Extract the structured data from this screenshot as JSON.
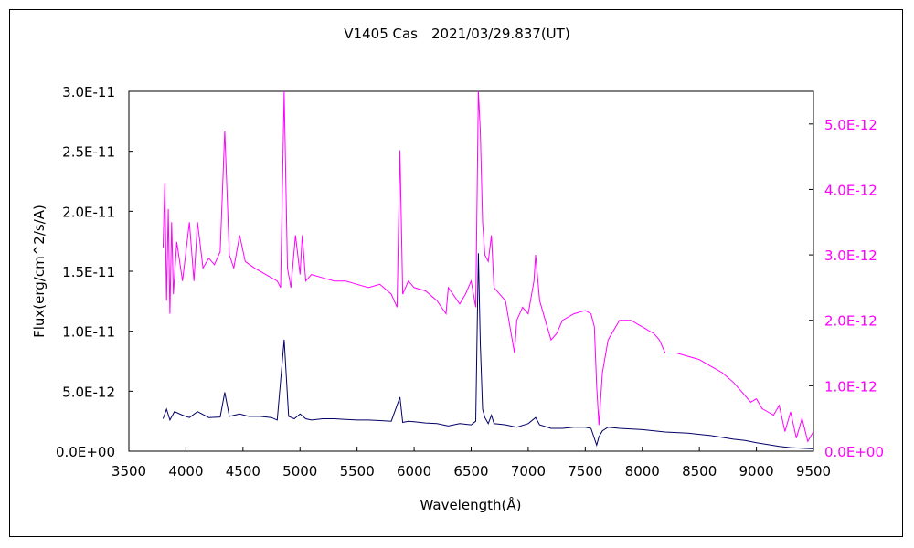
{
  "chart_data": {
    "type": "line",
    "title": "V1405 Cas　2021/03/29.837(UT)",
    "xlabel": "Wavelength(Å)",
    "ylabel": "Flux(erg/cm^2/s/A)",
    "xlim": [
      3500,
      9500
    ],
    "ylim_left": [
      0,
      3e-11
    ],
    "ylim_right": [
      0,
      5.5e-12
    ],
    "x_ticks": [
      "3500",
      "4000",
      "4500",
      "5000",
      "5500",
      "6000",
      "6500",
      "7000",
      "7500",
      "8000",
      "8500",
      "9000",
      "9500"
    ],
    "y_ticks_left": [
      "0.0E+00",
      "5.0E-12",
      "1.0E-11",
      "1.5E-11",
      "2.0E-11",
      "2.5E-11",
      "3.0E-11"
    ],
    "y_ticks_right": [
      "0.0E+00",
      "1.0E-12",
      "2.0E-12",
      "3.0E-12",
      "4.0E-12",
      "5.0E-12"
    ],
    "grid": false,
    "series": [
      {
        "axis": "left",
        "color": "#000066",
        "x": [
          3800,
          3830,
          3860,
          3900,
          3970,
          4030,
          4102,
          4200,
          4300,
          4340,
          4380,
          4471,
          4550,
          4650,
          4750,
          4800,
          4861,
          4900,
          4950,
          5000,
          5050,
          5100,
          5200,
          5300,
          5400,
          5500,
          5600,
          5700,
          5800,
          5876,
          5900,
          5950,
          6000,
          6100,
          6200,
          6300,
          6400,
          6500,
          6540,
          6563,
          6580,
          6600,
          6620,
          6650,
          6678,
          6700,
          6800,
          6900,
          7000,
          7065,
          7100,
          7200,
          7300,
          7400,
          7500,
          7550,
          7600,
          7620,
          7650,
          7700,
          7800,
          8000,
          8200,
          8400,
          8500,
          8600,
          8700,
          8800,
          8900,
          9000,
          9100,
          9200,
          9300,
          9400,
          9500
        ],
        "y": [
          2.7e-12,
          3.5e-12,
          2.6e-12,
          3.3e-12,
          3e-12,
          2.8e-12,
          3.3e-12,
          2.8e-12,
          2.85e-12,
          4.9e-12,
          2.9e-12,
          3.1e-12,
          2.9e-12,
          2.9e-12,
          2.8e-12,
          2.6e-12,
          9.3e-12,
          2.9e-12,
          2.7e-12,
          3.1e-12,
          2.7e-12,
          2.6e-12,
          2.7e-12,
          2.7e-12,
          2.65e-12,
          2.6e-12,
          2.6e-12,
          2.55e-12,
          2.5e-12,
          4.5e-12,
          2.4e-12,
          2.5e-12,
          2.45e-12,
          2.35e-12,
          2.3e-12,
          2.1e-12,
          2.3e-12,
          2.2e-12,
          2.5e-12,
          1.65e-11,
          9e-12,
          3.5e-12,
          2.8e-12,
          2.3e-12,
          3e-12,
          2.3e-12,
          2.2e-12,
          2e-12,
          2.3e-12,
          2.8e-12,
          2.2e-12,
          1.9e-12,
          1.9e-12,
          2e-12,
          2e-12,
          1.9e-12,
          5e-13,
          1.2e-12,
          1.7e-12,
          2e-12,
          1.9e-12,
          1.8e-12,
          1.6e-12,
          1.5e-12,
          1.4e-12,
          1.3e-12,
          1.15e-12,
          1e-12,
          9e-13,
          7e-13,
          5.5e-13,
          4e-13,
          3e-13,
          2.5e-13,
          2e-13
        ]
      },
      {
        "axis": "right",
        "color": "#ff00ff",
        "x": [
          3800,
          3815,
          3830,
          3845,
          3860,
          3875,
          3890,
          3920,
          3970,
          4030,
          4070,
          4102,
          4150,
          4200,
          4250,
          4300,
          4340,
          4380,
          4420,
          4471,
          4520,
          4600,
          4700,
          4800,
          4830,
          4861,
          4890,
          4920,
          4960,
          5000,
          5020,
          5050,
          5100,
          5200,
          5300,
          5400,
          5500,
          5600,
          5700,
          5800,
          5850,
          5876,
          5900,
          5950,
          6000,
          6100,
          6200,
          6280,
          6300,
          6400,
          6450,
          6500,
          6540,
          6563,
          6580,
          6600,
          6620,
          6650,
          6678,
          6700,
          6750,
          6800,
          6850,
          6880,
          6900,
          6950,
          7000,
          7050,
          7065,
          7100,
          7150,
          7200,
          7250,
          7300,
          7400,
          7500,
          7550,
          7580,
          7600,
          7620,
          7650,
          7700,
          7800,
          7900,
          8000,
          8100,
          8150,
          8200,
          8300,
          8400,
          8500,
          8600,
          8700,
          8800,
          8850,
          8900,
          8950,
          9000,
          9050,
          9100,
          9150,
          9200,
          9250,
          9300,
          9350,
          9400,
          9450,
          9500
        ],
        "y": [
          3.1e-12,
          4.1e-12,
          2.3e-12,
          3.7e-12,
          2.1e-12,
          3.5e-12,
          2.4e-12,
          3.2e-12,
          2.6e-12,
          3.5e-12,
          2.6e-12,
          3.5e-12,
          2.8e-12,
          2.95e-12,
          2.85e-12,
          3.05e-12,
          4.9e-12,
          3e-12,
          2.8e-12,
          3.3e-12,
          2.9e-12,
          2.8e-12,
          2.7e-12,
          2.6e-12,
          2.5e-12,
          5.5e-12,
          2.8e-12,
          2.5e-12,
          3.3e-12,
          2.7e-12,
          3.3e-12,
          2.6e-12,
          2.7e-12,
          2.65e-12,
          2.6e-12,
          2.6e-12,
          2.55e-12,
          2.5e-12,
          2.55e-12,
          2.4e-12,
          2.2e-12,
          4.6e-12,
          2.4e-12,
          2.6e-12,
          2.5e-12,
          2.45e-12,
          2.3e-12,
          2.1e-12,
          2.5e-12,
          2.25e-12,
          2.4e-12,
          2.6e-12,
          2.2e-12,
          5.5e-12,
          4.9e-12,
          3.5e-12,
          3e-12,
          2.9e-12,
          3.3e-12,
          2.5e-12,
          2.4e-12,
          2.3e-12,
          1.8e-12,
          1.5e-12,
          2e-12,
          2.2e-12,
          2.1e-12,
          2.6e-12,
          3e-12,
          2.3e-12,
          2e-12,
          1.7e-12,
          1.8e-12,
          2e-12,
          2.1e-12,
          2.15e-12,
          2.1e-12,
          1.9e-12,
          1e-12,
          4e-13,
          1.2e-12,
          1.7e-12,
          2e-12,
          2e-12,
          1.9e-12,
          1.8e-12,
          1.7e-12,
          1.5e-12,
          1.5e-12,
          1.45e-12,
          1.4e-12,
          1.3e-12,
          1.2e-12,
          1.05e-12,
          9.5e-13,
          8.5e-13,
          7.5e-13,
          8e-13,
          6.5e-13,
          6e-13,
          5.5e-13,
          7e-13,
          3e-13,
          6e-13,
          2e-13,
          5e-13,
          1.5e-13,
          3e-13
        ]
      }
    ]
  }
}
